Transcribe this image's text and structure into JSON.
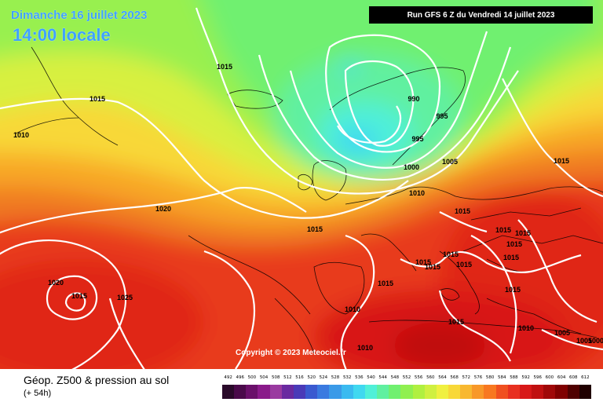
{
  "header": {
    "date_text": "Dimanche 16 juillet 2023",
    "time_text": "14:00 locale",
    "run_text": "Run GFS 6 Z du Vendredi 14 juillet 2023"
  },
  "map": {
    "copyright": "Copyright © 2023 Meteociel.fr",
    "isobar_labels": [
      {
        "id": "l1",
        "text": "1015"
      },
      {
        "id": "l2",
        "text": "1015"
      },
      {
        "id": "l3",
        "text": "1010"
      },
      {
        "id": "l4",
        "text": "990"
      },
      {
        "id": "l5",
        "text": "995"
      },
      {
        "id": "l6",
        "text": "995"
      },
      {
        "id": "l7",
        "text": "1000"
      },
      {
        "id": "l8",
        "text": "1005"
      },
      {
        "id": "l9",
        "text": "1010"
      },
      {
        "id": "l10",
        "text": "1015"
      },
      {
        "id": "l11",
        "text": "1020"
      },
      {
        "id": "l12",
        "text": "1015"
      },
      {
        "id": "l13",
        "text": "1015"
      },
      {
        "id": "l14",
        "text": "1015"
      },
      {
        "id": "l15",
        "text": "1015"
      },
      {
        "id": "l16",
        "text": "1015"
      },
      {
        "id": "l17",
        "text": "1015"
      },
      {
        "id": "l18",
        "text": "1015"
      },
      {
        "id": "l19",
        "text": "1015"
      },
      {
        "id": "l20",
        "text": "1015"
      },
      {
        "id": "l21",
        "text": "1020"
      },
      {
        "id": "l22",
        "text": "1015"
      },
      {
        "id": "l23",
        "text": "1025"
      },
      {
        "id": "l24",
        "text": "1010"
      },
      {
        "id": "l25",
        "text": "1015"
      },
      {
        "id": "l26",
        "text": "1015"
      },
      {
        "id": "l27",
        "text": "1010"
      },
      {
        "id": "l28",
        "text": "1010"
      },
      {
        "id": "l29",
        "text": "1005"
      },
      {
        "id": "l30",
        "text": "1005"
      },
      {
        "id": "l31",
        "text": "1000"
      },
      {
        "id": "l32",
        "text": "1015"
      },
      {
        "id": "l33",
        "text": "1015"
      }
    ]
  },
  "footer": {
    "title": "Géop. Z500 & pression au sol",
    "subtitle": "(+ 54h)",
    "legend": {
      "labels": [
        "492",
        "496",
        "500",
        "504",
        "508",
        "512",
        "516",
        "520",
        "524",
        "528",
        "532",
        "536",
        "540",
        "544",
        "548",
        "552",
        "556",
        "560",
        "564",
        "568",
        "572",
        "576",
        "580",
        "584",
        "588",
        "592",
        "596",
        "600",
        "604",
        "608",
        "612"
      ],
      "colors": [
        "#2a0a2a",
        "#4a0a4a",
        "#6a106a",
        "#8a1a8a",
        "#9a3aa0",
        "#6a2aa0",
        "#4a3ab8",
        "#3a5ad0",
        "#3a7ae0",
        "#3a9ae8",
        "#3abaf0",
        "#40d8f0",
        "#50f0d8",
        "#60f0a0",
        "#70f070",
        "#90f050",
        "#b0f040",
        "#d0f040",
        "#f0f040",
        "#f8d838",
        "#f8b830",
        "#f89828",
        "#f87820",
        "#f05020",
        "#e83020",
        "#d81818",
        "#c01010",
        "#a00808",
        "#800000",
        "#500000",
        "#200000"
      ]
    }
  }
}
